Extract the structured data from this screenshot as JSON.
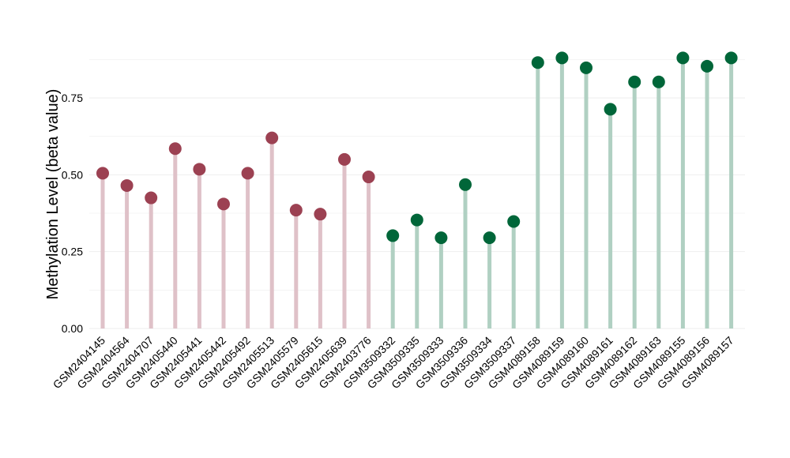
{
  "chart_data": {
    "type": "lollipop",
    "title": "",
    "xlabel": "",
    "ylabel": "Methylation Level (beta value)",
    "ylim": [
      0,
      0.9
    ],
    "yticks": [
      0.0,
      0.25,
      0.5,
      0.75
    ],
    "ytick_labels": [
      "0.00",
      "0.25",
      "0.50",
      "0.75"
    ],
    "grid": true,
    "legend": "none",
    "categories": [
      "GSM2404145",
      "GSM2404564",
      "GSM2404707",
      "GSM2405440",
      "GSM2405441",
      "GSM2405442",
      "GSM2405492",
      "GSM2405513",
      "GSM2405579",
      "GSM2405615",
      "GSM2405639",
      "GSM2403776",
      "GSM3509332",
      "GSM3509335",
      "GSM3509333",
      "GSM3509336",
      "GSM3509334",
      "GSM3509337",
      "GSM4089158",
      "GSM4089159",
      "GSM4089160",
      "GSM4089161",
      "GSM4089162",
      "GSM4089163",
      "GSM4089155",
      "GSM4089156",
      "GSM4089157"
    ],
    "values": [
      0.505,
      0.465,
      0.425,
      0.585,
      0.518,
      0.405,
      0.505,
      0.62,
      0.385,
      0.372,
      0.55,
      0.493,
      0.302,
      0.353,
      0.295,
      0.468,
      0.295,
      0.348,
      0.865,
      0.88,
      0.848,
      0.713,
      0.802,
      0.802,
      0.88,
      0.853,
      0.88
    ],
    "groups": [
      "red",
      "red",
      "red",
      "red",
      "red",
      "red",
      "red",
      "red",
      "red",
      "red",
      "red",
      "red",
      "green",
      "green",
      "green",
      "green",
      "green",
      "green",
      "green",
      "green",
      "green",
      "green",
      "green",
      "green",
      "green",
      "green",
      "green"
    ],
    "colors": {
      "red": {
        "dot": "#9c4152",
        "stem": "#dfc1c8"
      },
      "green": {
        "dot": "#006639",
        "stem": "#b0d0c2"
      },
      "grid": "#eeeeee"
    }
  }
}
